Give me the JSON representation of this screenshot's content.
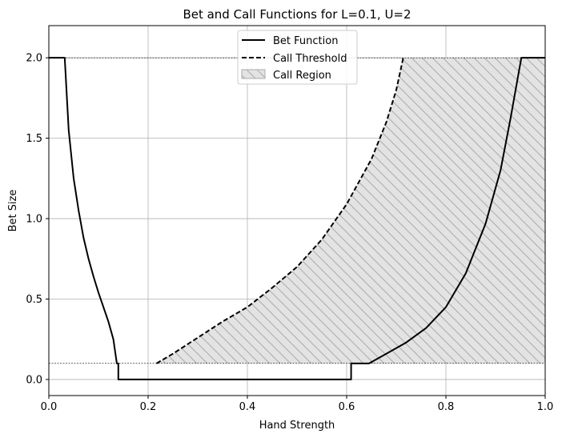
{
  "chart_data": {
    "type": "line",
    "title": "Bet and Call Functions for L=0.1, U=2",
    "xlabel": "Hand Strength",
    "ylabel": "Bet Size",
    "xlim": [
      0.0,
      1.0
    ],
    "ylim": [
      -0.1,
      2.2
    ],
    "xticks": [
      0.0,
      0.2,
      0.4,
      0.6,
      0.8,
      1.0
    ],
    "xtick_labels": [
      "0.0",
      "0.2",
      "0.4",
      "0.6",
      "0.8",
      "1.0"
    ],
    "yticks": [
      0.0,
      0.5,
      1.0,
      1.5,
      2.0
    ],
    "ytick_labels": [
      "0.0",
      "0.5",
      "1.0",
      "1.5",
      "2.0"
    ],
    "grid": true,
    "legend_position": "top-center",
    "reference_lines": [
      0.1,
      2.0
    ],
    "series": [
      {
        "name": "Bet Function",
        "style": "solid",
        "color": "#000000",
        "points": [
          [
            0.0,
            2.0
          ],
          [
            0.032,
            2.0
          ],
          [
            0.04,
            1.55
          ],
          [
            0.05,
            1.25
          ],
          [
            0.06,
            1.05
          ],
          [
            0.07,
            0.88
          ],
          [
            0.08,
            0.75
          ],
          [
            0.09,
            0.64
          ],
          [
            0.1,
            0.54
          ],
          [
            0.11,
            0.45
          ],
          [
            0.12,
            0.36
          ],
          [
            0.13,
            0.25
          ],
          [
            0.137,
            0.1
          ],
          [
            0.14,
            0.1
          ],
          [
            0.14,
            0.0
          ],
          [
            0.609,
            0.0
          ],
          [
            0.609,
            0.1
          ],
          [
            0.645,
            0.1
          ],
          [
            0.68,
            0.16
          ],
          [
            0.72,
            0.23
          ],
          [
            0.76,
            0.32
          ],
          [
            0.8,
            0.45
          ],
          [
            0.84,
            0.66
          ],
          [
            0.88,
            0.97
          ],
          [
            0.91,
            1.3
          ],
          [
            0.93,
            1.62
          ],
          [
            0.945,
            1.88
          ],
          [
            0.952,
            2.0
          ],
          [
            1.0,
            2.0
          ]
        ]
      },
      {
        "name": "Call Threshold",
        "style": "dashed",
        "color": "#000000",
        "points": [
          [
            0.217,
            0.1
          ],
          [
            0.25,
            0.16
          ],
          [
            0.3,
            0.26
          ],
          [
            0.35,
            0.36
          ],
          [
            0.4,
            0.45
          ],
          [
            0.45,
            0.57
          ],
          [
            0.5,
            0.7
          ],
          [
            0.55,
            0.87
          ],
          [
            0.6,
            1.09
          ],
          [
            0.65,
            1.37
          ],
          [
            0.68,
            1.6
          ],
          [
            0.7,
            1.8
          ],
          [
            0.714,
            2.0
          ]
        ]
      }
    ],
    "fill": {
      "name": "Call Region",
      "color": "#e3e3e3",
      "hatch": "diagonal",
      "y_bottom": 0.1,
      "y_top": 2.0,
      "left_boundary": "Call Threshold",
      "right_x": 1.0
    }
  }
}
